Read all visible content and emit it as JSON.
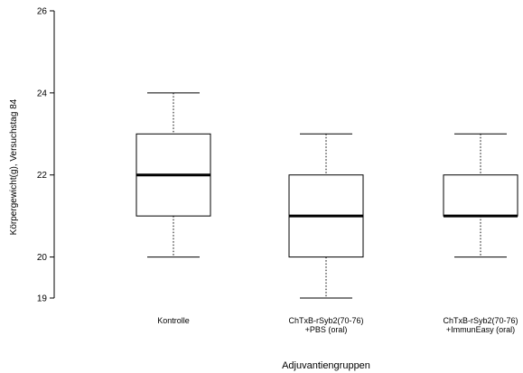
{
  "chart_data": {
    "type": "boxplot",
    "title": "",
    "xlabel": "Adjuvantiengruppen",
    "ylabel": "Körpergewicht(g), Versuchstag 84",
    "ylim": [
      19,
      26
    ],
    "yticks": [
      19,
      20,
      22,
      24,
      26
    ],
    "grid": false,
    "categories": [
      [
        "Kontrolle"
      ],
      [
        "ChTxB-rSyb2(70-76)",
        "+PBS (oral)"
      ],
      [
        "ChTxB-rSyb2(70-76)",
        "+ImmunEasy (oral)"
      ]
    ],
    "boxes": [
      {
        "min": 20,
        "q1": 21,
        "median": 22,
        "q3": 23,
        "max": 24
      },
      {
        "min": 19,
        "q1": 20,
        "median": 21,
        "q3": 22,
        "max": 23
      },
      {
        "min": 20,
        "q1": 21,
        "median": 21,
        "q3": 22,
        "max": 23
      }
    ]
  }
}
